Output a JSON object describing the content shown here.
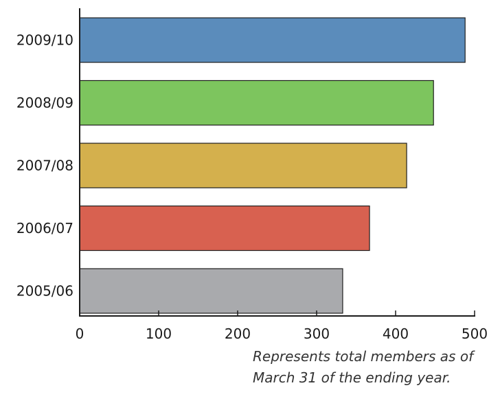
{
  "chart_data": {
    "type": "bar",
    "orientation": "horizontal",
    "categories": [
      "2009/10",
      "2008/09",
      "2007/08",
      "2006/07",
      "2005/06"
    ],
    "values": [
      488,
      448,
      414,
      367,
      333
    ],
    "colors": [
      "#5b8cbb",
      "#7dc55e",
      "#d4b04d",
      "#d86150",
      "#a9aaad"
    ],
    "xlim": [
      0,
      500
    ],
    "xticks": [
      0,
      100,
      200,
      300,
      400,
      500
    ],
    "grid": false,
    "title": "",
    "xlabel": "",
    "ylabel": ""
  },
  "note": {
    "line1": "Represents total members as of",
    "line2": "March 31 of the ending year."
  }
}
